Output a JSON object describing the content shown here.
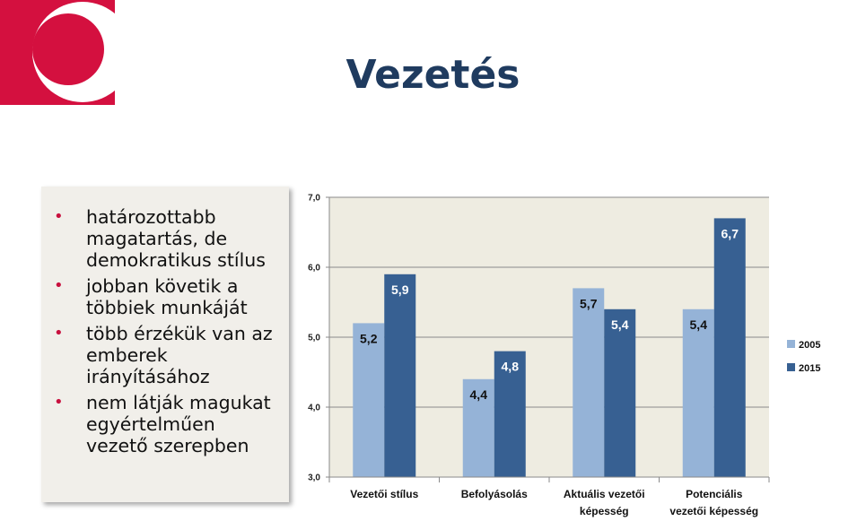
{
  "slide": {
    "title": "Vezetés",
    "bullets": [
      "határozottabb magatartás, de demokratikus stílus",
      "jobban követik a többiek munkáját",
      "több érzékük van az emberek irányításához",
      "nem látják magukat egyértelműen vezető szerepben"
    ],
    "bullet_glyph": "•"
  },
  "colors": {
    "brand": "#d4103f",
    "title": "#1f3b5f",
    "series_2005": "#95b3d7",
    "series_2015": "#376092",
    "plot_bg": "#eeece1",
    "bullet": "#c8103e"
  },
  "chart_data": {
    "type": "bar",
    "title": "",
    "xlabel": "",
    "ylabel": "",
    "categories": [
      [
        "Vezetői stílus"
      ],
      [
        "Befolyásolás"
      ],
      [
        "Aktuális vezetői",
        "képesség"
      ],
      [
        "Potenciális",
        "vezetői képesség"
      ]
    ],
    "series": [
      {
        "name": "2005",
        "values": [
          5.2,
          4.4,
          5.7,
          5.4
        ],
        "labels": [
          "5,2",
          "4,4",
          "5,7",
          "5,4"
        ]
      },
      {
        "name": "2015",
        "values": [
          5.9,
          4.8,
          5.4,
          6.7
        ],
        "labels": [
          "5,9",
          "4,8",
          "5,4",
          "6,7"
        ]
      }
    ],
    "ylim": [
      3.0,
      7.0
    ],
    "yticks": [
      3.0,
      4.0,
      5.0,
      6.0,
      7.0
    ],
    "ytick_labels": [
      "3,0",
      "4,0",
      "5,0",
      "6,0",
      "7,0"
    ],
    "grid": true,
    "legend_position": "right"
  }
}
